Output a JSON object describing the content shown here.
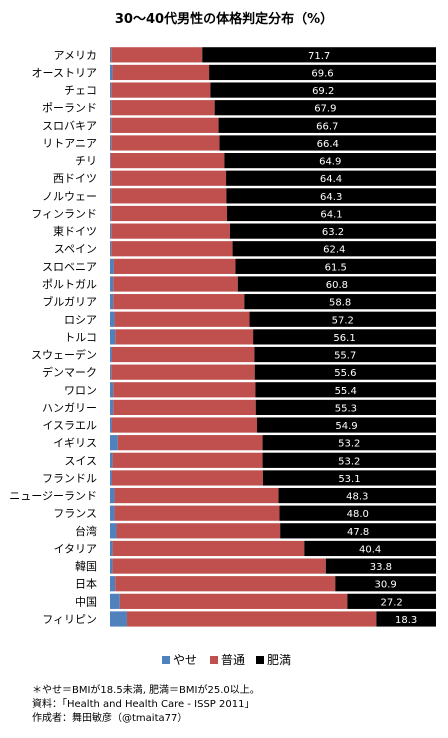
{
  "chart_data": {
    "type": "bar",
    "stacked": true,
    "orientation": "horizontal",
    "title": "30～40代男性の体格判定分布（%）",
    "xlim": [
      0,
      100
    ],
    "categories": [
      "アメリカ",
      "オーストリア",
      "チェコ",
      "ポーランド",
      "スロバキア",
      "リトアニア",
      "チリ",
      "西ドイツ",
      "ノルウェー",
      "フィンランド",
      "東ドイツ",
      "スペイン",
      "スロベニア",
      "ポルトガル",
      "ブルガリア",
      "ロシア",
      "トルコ",
      "スウェーデン",
      "デンマーク",
      "ワロン",
      "ハンガリー",
      "イスラエル",
      "イギリス",
      "スイス",
      "フランドル",
      "ニュージーランド",
      "フランス",
      "台湾",
      "イタリア",
      "韓国",
      "日本",
      "中国",
      "フィリピン"
    ],
    "series": [
      {
        "name": "やせ",
        "color": "#4f81bd",
        "values": [
          0.4,
          0.8,
          0.4,
          0.4,
          0.4,
          0.4,
          0.2,
          0.4,
          0.4,
          0.4,
          0.4,
          0.4,
          1.2,
          1.0,
          1.0,
          1.4,
          1.6,
          0.6,
          0.4,
          1.0,
          1.0,
          0.6,
          2.4,
          0.8,
          0.6,
          1.4,
          1.4,
          2.0,
          0.8,
          0.8,
          1.6,
          3.0,
          5.2
        ]
      },
      {
        "name": "普通",
        "color": "#c0504d",
        "values": [
          27.9,
          29.6,
          30.4,
          31.7,
          32.9,
          33.2,
          34.9,
          35.2,
          35.3,
          35.5,
          36.4,
          37.2,
          37.3,
          38.2,
          40.2,
          41.4,
          42.3,
          43.7,
          44.0,
          43.6,
          43.7,
          44.5,
          44.4,
          46.0,
          46.3,
          50.3,
          50.6,
          50.2,
          58.8,
          65.4,
          67.5,
          69.8,
          76.5
        ]
      },
      {
        "name": "肥満",
        "color": "#000000",
        "values": [
          71.7,
          69.6,
          69.2,
          67.9,
          66.7,
          66.4,
          64.9,
          64.4,
          64.3,
          64.1,
          63.2,
          62.4,
          61.5,
          60.8,
          58.8,
          57.2,
          56.1,
          55.7,
          55.6,
          55.4,
          55.3,
          54.9,
          53.2,
          53.2,
          53.1,
          48.3,
          48.0,
          47.8,
          40.4,
          33.8,
          30.9,
          27.2,
          18.3
        ]
      }
    ],
    "data_labels": [
      "71.7",
      "69.6",
      "69.2",
      "67.9",
      "66.7",
      "66.4",
      "64.9",
      "64.4",
      "64.3",
      "64.1",
      "63.2",
      "62.4",
      "61.5",
      "60.8",
      "58.8",
      "57.2",
      "56.1",
      "55.7",
      "55.6",
      "55.4",
      "55.3",
      "54.9",
      "53.2",
      "53.2",
      "53.1",
      "48.3",
      "48.0",
      "47.8",
      "40.4",
      "33.8",
      "30.9",
      "27.2",
      "18.3"
    ],
    "legend_position": "bottom",
    "grid": false
  },
  "notes": [
    "＊やせ＝BMIが18.5未満, 肥満＝BMIが25.0以上。",
    "資料：「Health and Health Care - ISSP 2011」",
    "作成者：舞田敏彦（@tmaita77）"
  ]
}
